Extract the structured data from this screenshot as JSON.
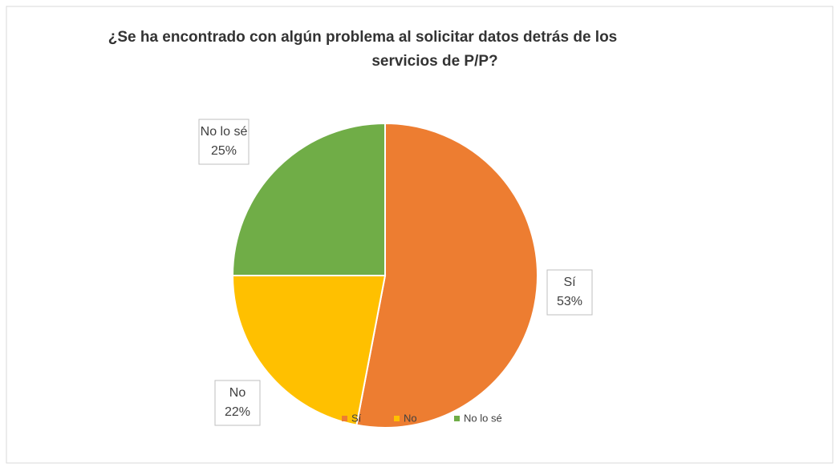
{
  "chart_data": {
    "type": "pie",
    "title": [
      "¿Se ha encontrado con algún problema al solicitar datos detrás de los",
      "servicios de P/P?"
    ],
    "categories": [
      "Sí",
      "No",
      "No lo sé"
    ],
    "values": [
      53,
      22,
      25
    ],
    "value_labels": [
      "53%",
      "22%",
      "25%"
    ],
    "colors": [
      "#ED7D31",
      "#FFC000",
      "#70AD47"
    ]
  }
}
